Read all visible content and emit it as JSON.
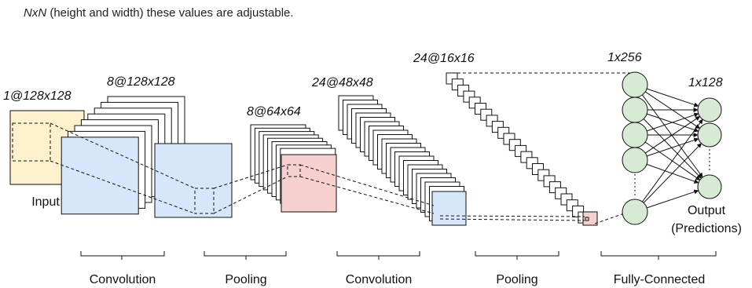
{
  "caption": {
    "variable": "NxN",
    "text": "(height and width) these values are adjustable."
  },
  "diagram": {
    "layers": [
      {
        "dims": "1@128x128",
        "label": "Input"
      },
      {
        "dims": "8@128x128"
      },
      {
        "dims": "8@64x64"
      },
      {
        "dims": "24@48x48"
      },
      {
        "dims": "24@16x16"
      },
      {
        "dims": "1x256"
      },
      {
        "dims": "1x128",
        "label": "Output",
        "label2": "(Predictions)"
      }
    ],
    "stages": [
      "Convolution",
      "Pooling",
      "Convolution",
      "Pooling",
      "Fully-Connected"
    ]
  },
  "colors": {
    "input_fill": "#fdf0cc",
    "conv_fill": "#d7e7fb",
    "pool_fill": "#f6cfcf",
    "neuron_fill": "#d6ead4",
    "stroke": "#111111"
  }
}
